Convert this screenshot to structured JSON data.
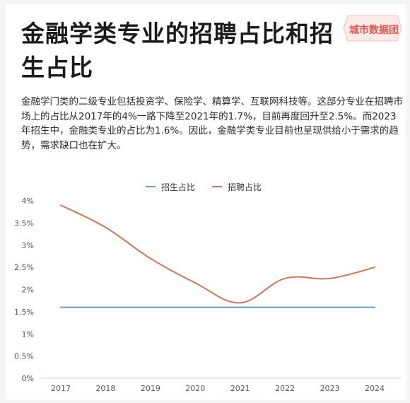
{
  "title": "金融学类专业的招聘占比和招生占比",
  "watermark": "城市数据团",
  "description": "金融学门类的二级专业包括投资学、保险学、精算学、互联网科技等。这部分专业在招聘市场上的占比从2017年的4%一路下降至2021年的1.7%，目前再度回升至2.5%。而2023年招生中，金融类专业的占比为1.6%。因此，金融学类专业目前也呈现供给小于需求的趋势，需求缺口也在扩大。",
  "colors": {
    "enroll": "#6a95c9",
    "recruit": "#c9765a",
    "grid": "#e3e3e3",
    "text": "#555555"
  },
  "chart_data": {
    "type": "line",
    "x": [
      "2017",
      "2018",
      "2019",
      "2020",
      "2021",
      "2022",
      "2023",
      "2024"
    ],
    "series": [
      {
        "name": "招生占比",
        "values": [
          1.6,
          1.6,
          1.6,
          1.6,
          1.6,
          1.6,
          1.6,
          1.6
        ]
      },
      {
        "name": "招聘占比",
        "values": [
          3.9,
          3.4,
          2.7,
          2.15,
          1.7,
          2.25,
          2.25,
          2.5
        ]
      }
    ],
    "yticks": [
      "0%",
      "0.5%",
      "1%",
      "1.5%",
      "2%",
      "2.5%",
      "3%",
      "3.5%",
      "4%"
    ],
    "ylim": [
      0,
      4
    ],
    "legend_position": "top-center",
    "grid": false
  }
}
